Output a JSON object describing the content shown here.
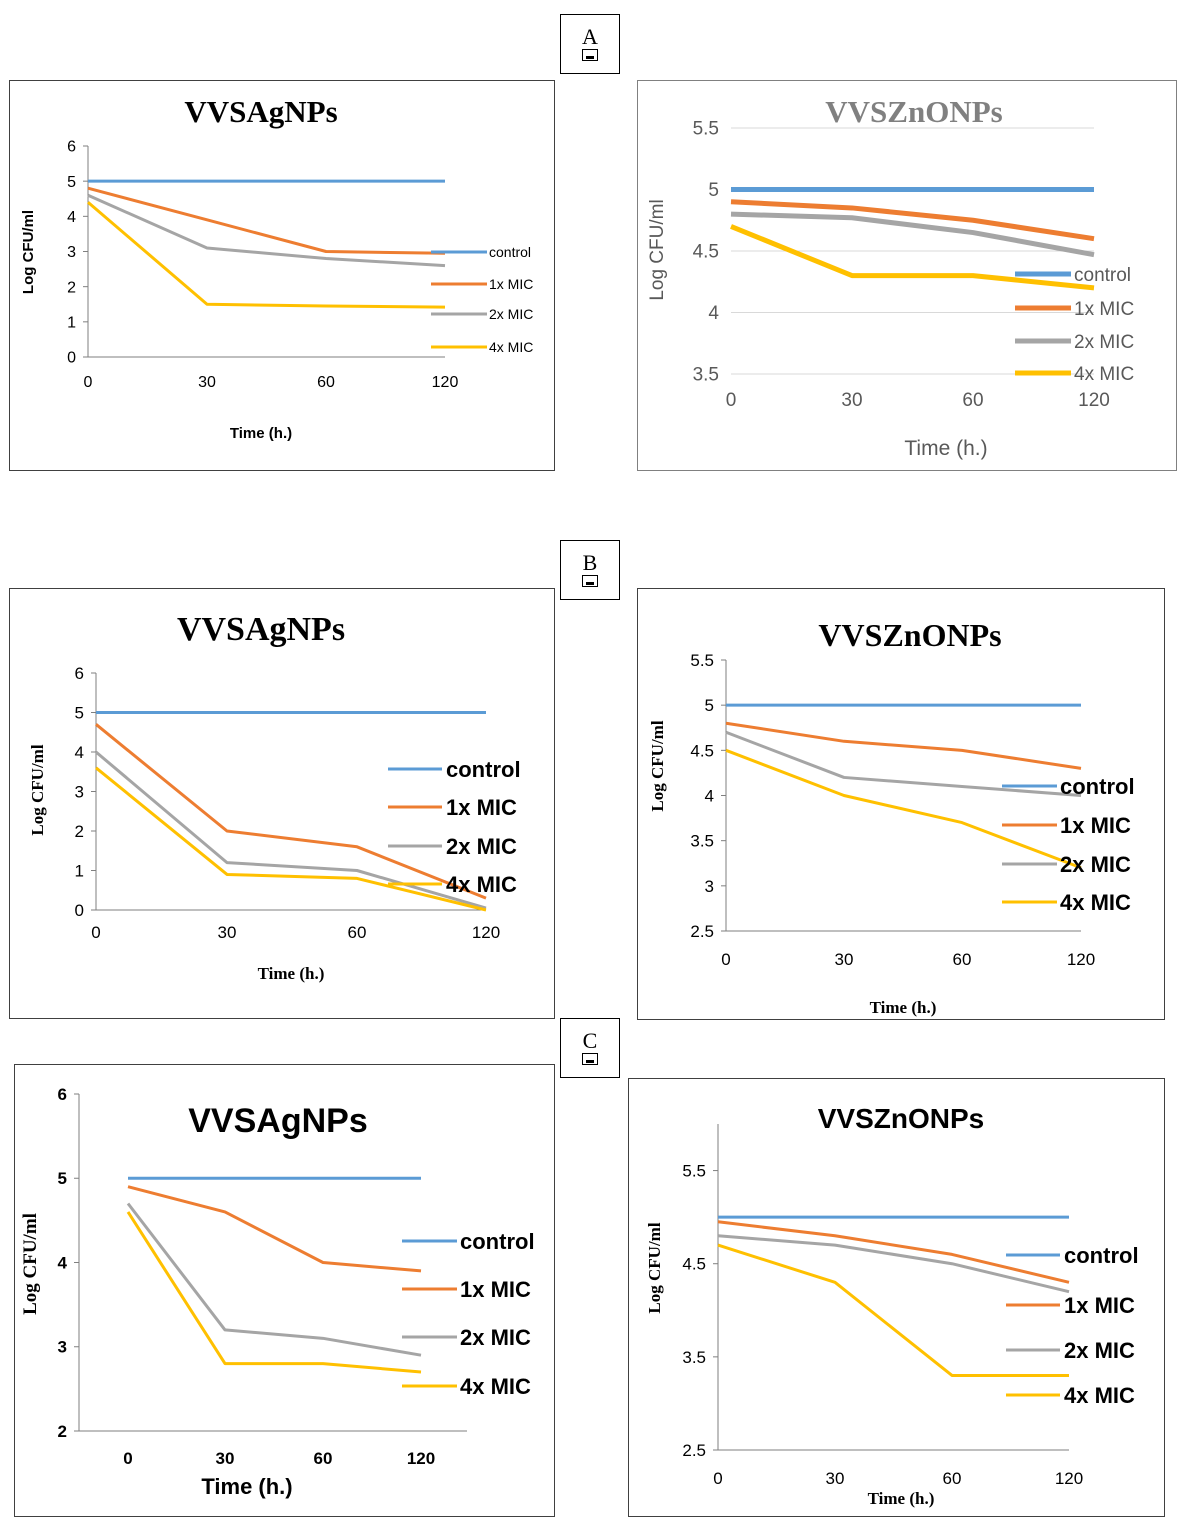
{
  "panel_labels": [
    "A",
    "B",
    "C"
  ],
  "series_colors": [
    "#5B9BD5",
    "#ED7D31",
    "#A5A5A5",
    "#FFC000"
  ],
  "chart_data": [
    {
      "panel": "A",
      "type": "line",
      "title": "VVSAgNPs",
      "xlabel": "Time (h.)",
      "ylabel": "Log CFU/ml",
      "categories": [
        "0",
        "30",
        "60",
        "120"
      ],
      "ylim": [
        0,
        6
      ],
      "yticks": [
        "0",
        "1",
        "2",
        "3",
        "4",
        "5",
        "6"
      ],
      "grid": false,
      "series": [
        {
          "name": "control",
          "values": [
            5,
            5,
            5,
            5
          ]
        },
        {
          "name": "1x MIC",
          "values": [
            4.8,
            3.9,
            3.0,
            2.95
          ]
        },
        {
          "name": "2x MIC",
          "values": [
            4.6,
            3.1,
            2.8,
            2.6
          ]
        },
        {
          "name": "4x MIC",
          "values": [
            4.4,
            1.5,
            1.45,
            1.42
          ]
        }
      ]
    },
    {
      "panel": "A",
      "type": "line",
      "title": "VVSZnONPs",
      "xlabel": "Time (h.)",
      "ylabel": "Log CFU/ml",
      "categories": [
        "0",
        "30",
        "60",
        "120"
      ],
      "ylim": [
        3.5,
        5.5
      ],
      "yticks": [
        "3.5",
        "4",
        "4.5",
        "5",
        "5.5"
      ],
      "grid": true,
      "series": [
        {
          "name": "control",
          "values": [
            5,
            5,
            5,
            5
          ]
        },
        {
          "name": "1x MIC",
          "values": [
            4.9,
            4.85,
            4.75,
            4.6
          ]
        },
        {
          "name": "2x MIC",
          "values": [
            4.8,
            4.77,
            4.65,
            4.47
          ]
        },
        {
          "name": "4x MIC",
          "values": [
            4.7,
            4.3,
            4.3,
            4.2
          ]
        }
      ]
    },
    {
      "panel": "B",
      "type": "line",
      "title": "VVSAgNPs",
      "xlabel": "Time (h.)",
      "ylabel": "Log CFU/ml",
      "categories": [
        "0",
        "30",
        "60",
        "120"
      ],
      "ylim": [
        0,
        6
      ],
      "yticks": [
        "0",
        "1",
        "2",
        "3",
        "4",
        "5",
        "6"
      ],
      "grid": false,
      "series": [
        {
          "name": "control",
          "values": [
            5,
            5,
            5,
            5
          ]
        },
        {
          "name": "1x MIC",
          "values": [
            4.7,
            2.0,
            1.6,
            0.3
          ]
        },
        {
          "name": "2x MIC",
          "values": [
            4.0,
            1.2,
            1.0,
            0.05
          ]
        },
        {
          "name": "4x MIC",
          "values": [
            3.6,
            0.9,
            0.8,
            0.0
          ]
        }
      ]
    },
    {
      "panel": "B",
      "type": "line",
      "title": "VVSZnONPs",
      "xlabel": "Time (h.)",
      "ylabel": "Log CFU/ml",
      "categories": [
        "0",
        "30",
        "60",
        "120"
      ],
      "ylim": [
        2.5,
        5.5
      ],
      "yticks": [
        "2.5",
        "3",
        "3.5",
        "4",
        "4.5",
        "5",
        "5.5"
      ],
      "grid": false,
      "series": [
        {
          "name": "control",
          "values": [
            5,
            5,
            5,
            5
          ]
        },
        {
          "name": "1x MIC",
          "values": [
            4.8,
            4.6,
            4.5,
            4.3
          ]
        },
        {
          "name": "2x MIC",
          "values": [
            4.7,
            4.2,
            4.1,
            4.0
          ]
        },
        {
          "name": "4x MIC",
          "values": [
            4.5,
            4.0,
            3.7,
            3.2
          ]
        }
      ]
    },
    {
      "panel": "C",
      "type": "line",
      "title": "VVSAgNPs",
      "xlabel": "Time (h.)",
      "ylabel": "Log CFU/ml",
      "categories": [
        "0",
        "30",
        "60",
        "120"
      ],
      "ylim": [
        2,
        6
      ],
      "yticks": [
        "2",
        "3",
        "4",
        "5",
        "6"
      ],
      "grid": false,
      "series": [
        {
          "name": "control",
          "values": [
            5,
            5,
            5,
            5
          ]
        },
        {
          "name": "1x MIC",
          "values": [
            4.9,
            4.6,
            4.0,
            3.9
          ]
        },
        {
          "name": "2x MIC",
          "values": [
            4.7,
            3.2,
            3.1,
            2.9
          ]
        },
        {
          "name": "4x MIC",
          "values": [
            4.6,
            2.8,
            2.8,
            2.7
          ]
        }
      ]
    },
    {
      "panel": "C",
      "type": "line",
      "title": "VVSZnONPs",
      "xlabel": "Time (h.)",
      "ylabel": "Log CFU/ml",
      "categories": [
        "0",
        "30",
        "60",
        "120"
      ],
      "ylim": [
        2.5,
        6
      ],
      "yticks": [
        "2.5",
        "3.5",
        "4.5",
        "5.5"
      ],
      "grid": false,
      "series": [
        {
          "name": "control",
          "values": [
            5,
            5,
            5,
            5
          ]
        },
        {
          "name": "1x MIC",
          "values": [
            4.95,
            4.8,
            4.6,
            4.3
          ]
        },
        {
          "name": "2x MIC",
          "values": [
            4.8,
            4.7,
            4.5,
            4.2
          ]
        },
        {
          "name": "4x MIC",
          "values": [
            4.7,
            4.3,
            3.3,
            3.3
          ]
        }
      ]
    }
  ]
}
